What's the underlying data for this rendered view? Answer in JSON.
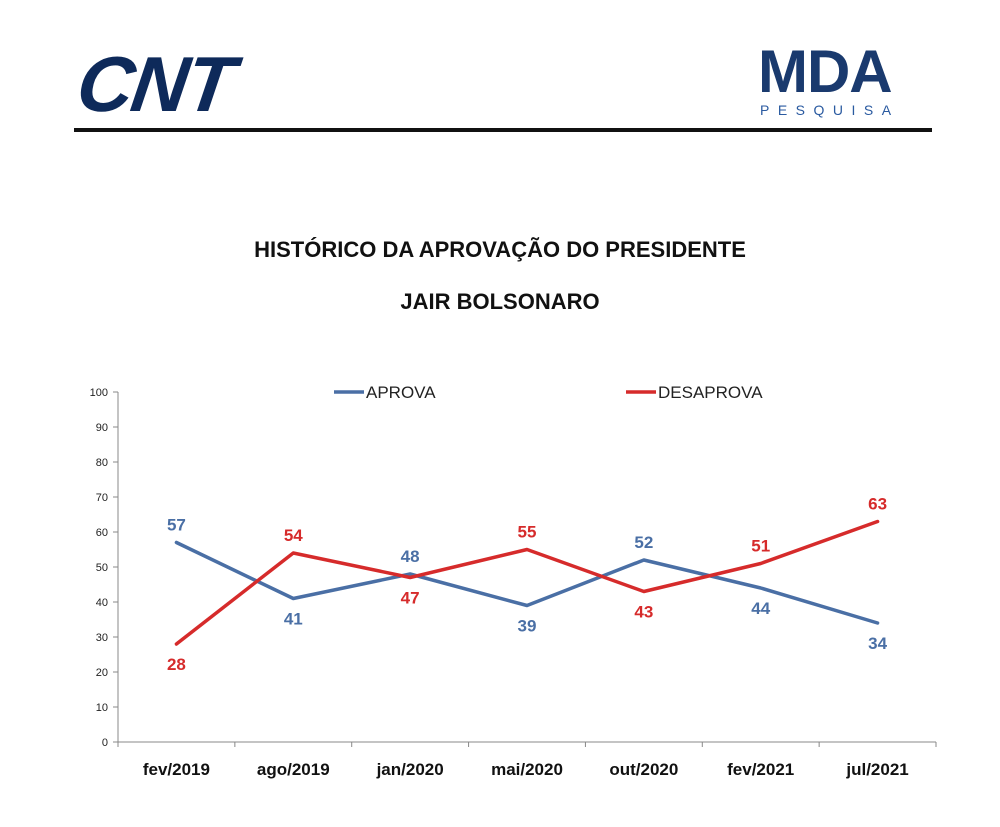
{
  "header": {
    "left_logo": "CNT",
    "right_logo_main": "MDA",
    "right_logo_sub": "PESQUISA"
  },
  "colors": {
    "aprova": "#4a6fa5",
    "desaprova": "#d62b2b",
    "logo_dark": "#0e2a5a"
  },
  "chart_data": {
    "type": "line",
    "title": "HISTÓRICO DA APROVAÇÃO DO PRESIDENTE",
    "subtitle": "JAIR BOLSONARO",
    "categories": [
      "fev/2019",
      "ago/2019",
      "jan/2020",
      "mai/2020",
      "out/2020",
      "fev/2021",
      "jul/2021"
    ],
    "series": [
      {
        "name": "APROVA",
        "values": [
          57,
          41,
          48,
          39,
          52,
          44,
          34
        ]
      },
      {
        "name": "DESAPROVA",
        "values": [
          28,
          54,
          47,
          55,
          43,
          51,
          63
        ]
      }
    ],
    "ylim": [
      0,
      100
    ],
    "yticks": [
      0,
      10,
      20,
      30,
      40,
      50,
      60,
      70,
      80,
      90,
      100
    ],
    "grid": false,
    "legend": "top-center"
  }
}
